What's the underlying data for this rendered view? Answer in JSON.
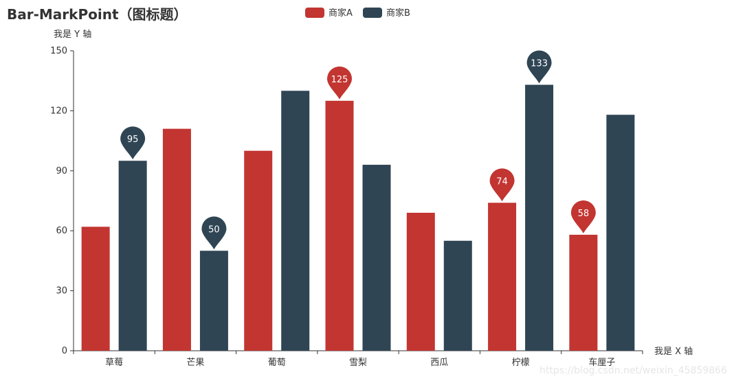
{
  "chart_data": {
    "type": "bar",
    "title": "Bar-MarkPoint（图标题）",
    "xlabel": "我是 X 轴",
    "ylabel": "我是 Y 轴",
    "ylim": [
      0,
      150
    ],
    "yticks": [
      0,
      30,
      60,
      90,
      120,
      150
    ],
    "categories": [
      "草莓",
      "芒果",
      "葡萄",
      "雪梨",
      "西瓜",
      "柠檬",
      "车厘子"
    ],
    "series": [
      {
        "name": "商家A",
        "color": "#c23531",
        "values": [
          62,
          111,
          100,
          125,
          69,
          74,
          58
        ]
      },
      {
        "name": "商家B",
        "color": "#2f4554",
        "values": [
          95,
          50,
          130,
          93,
          55,
          133,
          118
        ]
      }
    ],
    "mark_points": [
      {
        "series": 1,
        "category": 0,
        "value": 95,
        "label": "95"
      },
      {
        "series": 1,
        "category": 1,
        "value": 50,
        "label": "50"
      },
      {
        "series": 0,
        "category": 3,
        "value": 125,
        "label": "125"
      },
      {
        "series": 0,
        "category": 5,
        "value": 74,
        "label": "74"
      },
      {
        "series": 1,
        "category": 5,
        "value": 133,
        "label": "133"
      },
      {
        "series": 0,
        "category": 6,
        "value": 58,
        "label": "58"
      }
    ],
    "legend_position": "top-center",
    "grid": false
  },
  "watermark": "https://blog.csdn.net/weixin_45859866"
}
